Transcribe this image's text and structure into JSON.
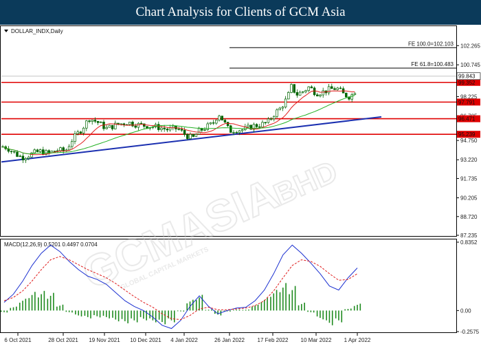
{
  "header": {
    "title": "Chart Analysis for Clients of GCM Asia"
  },
  "watermark": {
    "main": "GCMASIA",
    "sub": "GLOBAL CAPITAL MARKETS",
    "tag": "BHD"
  },
  "chart_data": {
    "type": "candlestick",
    "symbol_label": "DOLLAR_INDX,Daily",
    "price_axis": {
      "range": [
        87.235,
        103.7
      ],
      "ticks": [
        "102.265",
        "100.745",
        "98.225",
        "96.705",
        "94.750",
        "93.220",
        "91.735",
        "90.205",
        "88.720",
        "87.235"
      ]
    },
    "time_axis": {
      "labels": [
        "6 Oct 2021",
        "28 Oct 2021",
        "19 Nov 2021",
        "10 Dec 2021",
        "4 Jan 2022",
        "26 Jan 2022",
        "17 Feb 2022",
        "10 Mar 2022",
        "1 Apr 2022"
      ]
    },
    "current_price": "99.843",
    "support_resistance": [
      "99.352",
      "97.791",
      "96.471",
      "95.239"
    ],
    "fibonacci": [
      {
        "label": "FE 100.0=102.103",
        "value": 102.103
      },
      {
        "label": "FE 61.8=100.483",
        "value": 100.483
      }
    ],
    "colors": {
      "candle_up": "#006400",
      "candle_down": "#006400",
      "ma_fast": "#e11a1a",
      "ma_slow": "#22b022",
      "trendline": "#1a2fb0",
      "levels": "#e00000",
      "header": "#0b3a5a"
    },
    "macd": {
      "label": "MACD(12,26,9) 0.5201 0.4497 0.0704",
      "axis_ticks": [
        "0.8352",
        "0.00",
        "-0.2575"
      ],
      "range": [
        -0.2575,
        0.8352
      ],
      "main": [
        0.1,
        0.2,
        0.36,
        0.55,
        0.7,
        0.8,
        0.72,
        0.6,
        0.5,
        0.42,
        0.38,
        0.32,
        0.22,
        0.12,
        0.05,
        0.0,
        -0.08,
        -0.18,
        -0.22,
        -0.12,
        0.05,
        0.18,
        0.05,
        -0.04,
        0.0,
        0.03,
        0.04,
        0.12,
        0.25,
        0.45,
        0.68,
        0.8,
        0.7,
        0.58,
        0.45,
        0.3,
        0.25,
        0.4,
        0.52
      ],
      "signal": [
        0.12,
        0.16,
        0.24,
        0.36,
        0.5,
        0.62,
        0.66,
        0.62,
        0.56,
        0.5,
        0.45,
        0.4,
        0.33,
        0.25,
        0.17,
        0.1,
        0.04,
        -0.04,
        -0.1,
        -0.11,
        -0.06,
        0.02,
        0.04,
        0.01,
        0.01,
        0.02,
        0.03,
        0.06,
        0.12,
        0.24,
        0.4,
        0.55,
        0.62,
        0.6,
        0.54,
        0.45,
        0.37,
        0.38,
        0.45
      ],
      "histogram": [
        -0.02,
        0.04,
        0.12,
        0.19,
        0.2,
        0.18,
        0.06,
        -0.02,
        -0.06,
        -0.08,
        -0.07,
        -0.08,
        -0.11,
        -0.13,
        -0.12,
        -0.1,
        -0.12,
        -0.14,
        -0.12,
        -0.01,
        0.11,
        0.16,
        0.01,
        -0.05,
        -0.01,
        0.01,
        0.01,
        0.06,
        0.13,
        0.21,
        0.28,
        0.25,
        0.08,
        -0.02,
        -0.09,
        -0.15,
        -0.12,
        0.02,
        0.07
      ]
    }
  }
}
